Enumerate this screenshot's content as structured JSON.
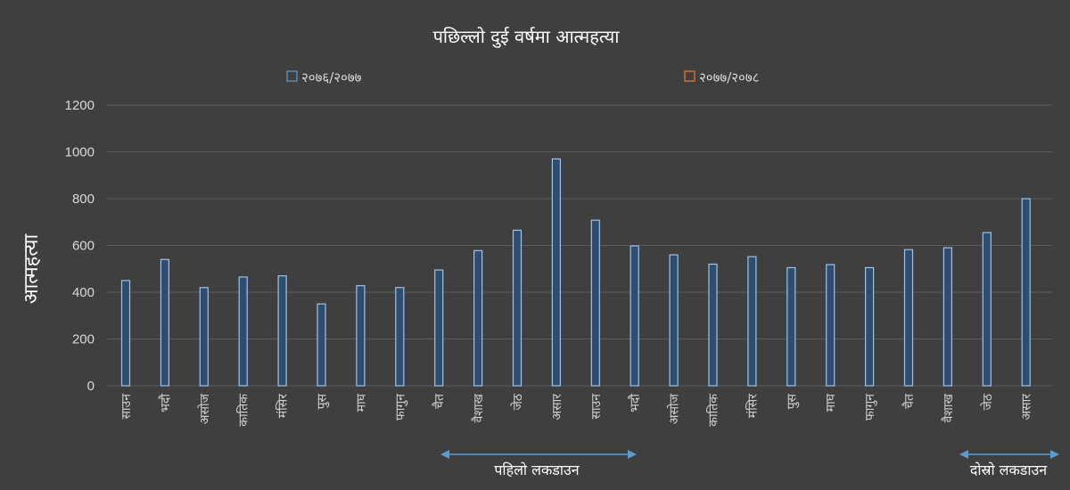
{
  "chart_data": {
    "type": "bar",
    "title": "पछिल्लो दुई वर्षमा आत्महत्या",
    "ylabel": "आत्महत्या",
    "xlabel": "",
    "ylim": [
      0,
      1200
    ],
    "yticks": [
      "0",
      "200",
      "400",
      "600",
      "800",
      "1000",
      "1200"
    ],
    "grid": true,
    "legend_placement": "top",
    "legend": [
      {
        "name": "२०७६/२०७७",
        "color": "#5b9bd5"
      },
      {
        "name": "२०७७/२०७८",
        "color": "#ed7d31"
      }
    ],
    "categories": [
      "साउन",
      "भदौ",
      "असोज",
      "कातिक",
      "मंसिर",
      "पुस",
      "माघ",
      "फागुन",
      "चैत",
      "वैशाख",
      "जेठ",
      "असार",
      "साउन",
      "भदौ",
      "असोज",
      "कातिक",
      "मंसिर",
      "पुस",
      "माघ",
      "फागुन",
      "चैत",
      "वैशाख",
      "जेठ",
      "असार"
    ],
    "values": [
      450,
      540,
      420,
      465,
      470,
      350,
      428,
      420,
      495,
      578,
      665,
      970,
      708,
      598,
      560,
      520,
      552,
      505,
      518,
      505,
      582,
      590,
      655,
      800
    ],
    "annotations": [
      {
        "text": "पहिलो लकडाउन"
      },
      {
        "text": "दोस्रो लकडाउन"
      }
    ]
  }
}
